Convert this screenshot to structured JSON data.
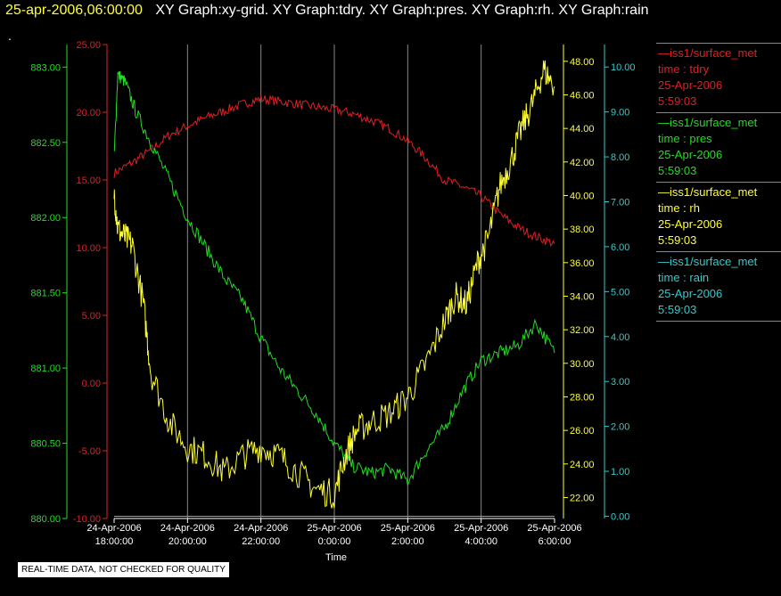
{
  "header": {
    "datetime": "25-apr-2006,06:00:00",
    "graph_titles": "XY Graph:xy-grid.  XY Graph:tdry.  XY Graph:pres.  XY Graph:rh.  XY Graph:rain",
    "dot": "."
  },
  "legend": [
    {
      "name": "iss1/surface_met",
      "var": "time : tdry",
      "date": "25-Apr-2006",
      "time": "5:59:03",
      "color": "#e02020"
    },
    {
      "name": "iss1/surface_met",
      "var": "time : pres",
      "date": "25-Apr-2006",
      "time": "5:59:03",
      "color": "#22dd22"
    },
    {
      "name": "iss1/surface_met",
      "var": "time : rh",
      "date": "25-Apr-2006",
      "time": "5:59:03",
      "color": "#ffff33"
    },
    {
      "name": "iss1/surface_met",
      "var": "time : rain",
      "date": "25-Apr-2006",
      "time": "5:59:03",
      "color": "#33cccc"
    }
  ],
  "disclaimer": "REAL-TIME DATA, NOT CHECKED FOR QUALITY",
  "chart_data": {
    "type": "line",
    "xlabel": "Time",
    "x_ticks": [
      {
        "date": "24-Apr-2006",
        "time": "18:00:00"
      },
      {
        "date": "24-Apr-2006",
        "time": "20:00:00"
      },
      {
        "date": "24-Apr-2006",
        "time": "22:00:00"
      },
      {
        "date": "25-Apr-2006",
        "time": "0:00:00"
      },
      {
        "date": "25-Apr-2006",
        "time": "2:00:00"
      },
      {
        "date": "25-Apr-2006",
        "time": "4:00:00"
      },
      {
        "date": "25-Apr-2006",
        "time": "6:00:00"
      }
    ],
    "xlim_hours": [
      -6,
      6
    ],
    "grid": "vertical",
    "axes": [
      {
        "id": "pres",
        "color": "#22dd22",
        "ylim": [
          880.0,
          883.15
        ],
        "ticks": [
          "880.00",
          "880.50",
          "881.00",
          "881.50",
          "882.00",
          "882.50",
          "883.00"
        ],
        "tick_values": [
          880.0,
          880.5,
          881.0,
          881.5,
          882.0,
          882.5,
          883.0
        ],
        "side": "left-outer"
      },
      {
        "id": "tdry",
        "color": "#e02020",
        "ylim": [
          -10,
          25
        ],
        "ticks": [
          "-10.00",
          "-5.00",
          "0.00",
          "5.00",
          "10.00",
          "15.00",
          "20.00",
          "25.00"
        ],
        "tick_values": [
          -10,
          -5,
          0,
          5,
          10,
          15,
          20,
          25
        ],
        "side": "left-inner"
      },
      {
        "id": "rh",
        "color": "#ffff33",
        "ylim": [
          20.75,
          49
        ],
        "ticks": [
          "22.00",
          "24.00",
          "26.00",
          "28.00",
          "30.00",
          "32.00",
          "34.00",
          "36.00",
          "38.00",
          "40.00",
          "42.00",
          "44.00",
          "46.00",
          "48.00"
        ],
        "tick_values": [
          22,
          24,
          26,
          28,
          30,
          32,
          34,
          36,
          38,
          40,
          42,
          44,
          46,
          48
        ],
        "side": "right-inner"
      },
      {
        "id": "rain",
        "color": "#33cccc",
        "ylim": [
          -0.05,
          10.5
        ],
        "ticks": [
          "0.00",
          "1.00",
          "2.00",
          "3.00",
          "4.00",
          "5.00",
          "6.00",
          "7.00",
          "8.00",
          "9.00",
          "10.00"
        ],
        "tick_values": [
          0,
          1,
          2,
          3,
          4,
          5,
          6,
          7,
          8,
          9,
          10
        ],
        "side": "right-outer"
      }
    ],
    "series": [
      {
        "name": "iss1/surface_met time : tdry",
        "axis": "tdry",
        "color": "#e02020",
        "x": [
          -6,
          -5.5,
          -5,
          -4.5,
          -4,
          -3.5,
          -3,
          -2.5,
          -2,
          -1.5,
          -1,
          -0.5,
          0,
          0.5,
          1,
          1.5,
          2,
          2.5,
          3,
          3.5,
          4,
          4.5,
          5,
          5.5,
          6
        ],
        "y": [
          15.5,
          16.3,
          17.2,
          18.3,
          19.0,
          19.6,
          20.1,
          20.6,
          21.0,
          20.8,
          20.6,
          20.4,
          20.2,
          19.9,
          19.4,
          18.8,
          17.9,
          16.6,
          15.0,
          14.5,
          13.8,
          12.5,
          11.5,
          10.8,
          10.3
        ]
      },
      {
        "name": "iss1/surface_met time : pres",
        "axis": "pres",
        "color": "#22dd22",
        "x": [
          -6,
          -5.9,
          -5.7,
          -5.4,
          -5,
          -4.5,
          -4,
          -3.5,
          -3,
          -2.5,
          -2,
          -1.5,
          -1,
          -0.5,
          0,
          0.5,
          1,
          1.5,
          2,
          2.5,
          3,
          3.5,
          4,
          4.5,
          5,
          5.5,
          6
        ],
        "y": [
          882.4,
          882.95,
          882.9,
          882.7,
          882.5,
          882.25,
          882.0,
          881.8,
          881.6,
          881.45,
          881.2,
          881.0,
          880.85,
          880.7,
          880.5,
          880.35,
          880.3,
          880.33,
          880.25,
          880.45,
          880.6,
          880.85,
          881.05,
          881.1,
          881.15,
          881.3,
          881.1
        ]
      },
      {
        "name": "iss1/surface_met time : rh",
        "axis": "rh",
        "color": "#ffff33",
        "x": [
          -6,
          -5.9,
          -5.7,
          -5.5,
          -5.2,
          -5,
          -4.5,
          -4,
          -3.5,
          -3,
          -2.5,
          -2,
          -1.5,
          -1,
          -0.5,
          0,
          0.3,
          0.6,
          1,
          1.5,
          2,
          2.5,
          3,
          3.3,
          3.6,
          3.9,
          4.2,
          4.5,
          4.8,
          5.1,
          5.4,
          5.7,
          6
        ],
        "y": [
          40.2,
          38.0,
          37.5,
          37.0,
          33.5,
          29.5,
          26.5,
          25.0,
          24.5,
          23.5,
          24.5,
          25.0,
          24.5,
          23.5,
          22.5,
          22.2,
          24.5,
          26.0,
          26.5,
          27.0,
          28.0,
          30.0,
          32.5,
          34.0,
          33.5,
          36.0,
          37.5,
          40.5,
          42.0,
          44.0,
          45.5,
          47.5,
          46.5
        ]
      },
      {
        "name": "iss1/surface_met time : rain",
        "axis": "rain",
        "color": "#33cccc",
        "x": [
          -6,
          6
        ],
        "y": [
          0,
          0
        ]
      }
    ]
  }
}
